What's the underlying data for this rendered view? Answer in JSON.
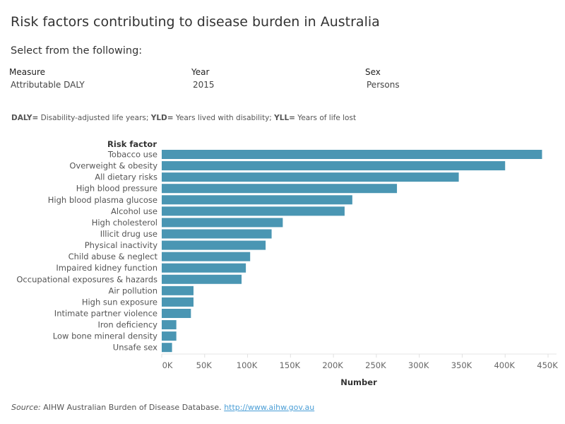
{
  "header": {
    "title": "Risk factors contributing to disease burden in Australia",
    "subtitle": "Select from the following:"
  },
  "filters": [
    {
      "label": "Measure",
      "value": "Attributable DALY"
    },
    {
      "label": "Year",
      "value": "2015"
    },
    {
      "label": "Sex",
      "value": "Persons"
    }
  ],
  "note": {
    "daly_key": "DALY=",
    "daly_text": " Disability-adjusted life years; ",
    "yld_key": "YLD=",
    "yld_text": " Years lived with disability; ",
    "yll_key": "YLL=",
    "yll_text": " Years of life lost"
  },
  "source": {
    "label": "Source:",
    "text": " AIHW Australian Burden of Disease Database. ",
    "link": "http://www.aihw.gov.au"
  },
  "colors": {
    "bar": "#4a96b3"
  },
  "chart_data": {
    "type": "bar",
    "orientation": "horizontal",
    "ylabel": "Risk factor",
    "xlabel": "Number",
    "xlim": [
      0,
      465000
    ],
    "xticks": [
      0,
      50000,
      100000,
      150000,
      200000,
      250000,
      300000,
      350000,
      400000,
      450000
    ],
    "xtick_labels": [
      "0K",
      "50K",
      "100K",
      "150K",
      "200K",
      "250K",
      "300K",
      "350K",
      "400K",
      "450K"
    ],
    "grid": false,
    "categories": [
      "Tobacco use",
      "Overweight & obesity",
      "All dietary risks",
      "High blood pressure",
      "High blood plasma glucose",
      "Alcohol use",
      "High cholesterol",
      "Illicit drug use",
      "Physical inactivity",
      "Child abuse & neglect",
      "Impaired kidney function",
      "Occupational exposures & hazards",
      "Air pollution",
      "High sun exposure",
      "Intimate partner violence",
      "Iron deficiency",
      "Low bone mineral density",
      "Unsafe sex"
    ],
    "values": [
      443000,
      400000,
      346000,
      274000,
      222000,
      213000,
      141000,
      128000,
      121000,
      103000,
      98000,
      93000,
      37000,
      37000,
      34000,
      17000,
      17000,
      12000
    ]
  }
}
